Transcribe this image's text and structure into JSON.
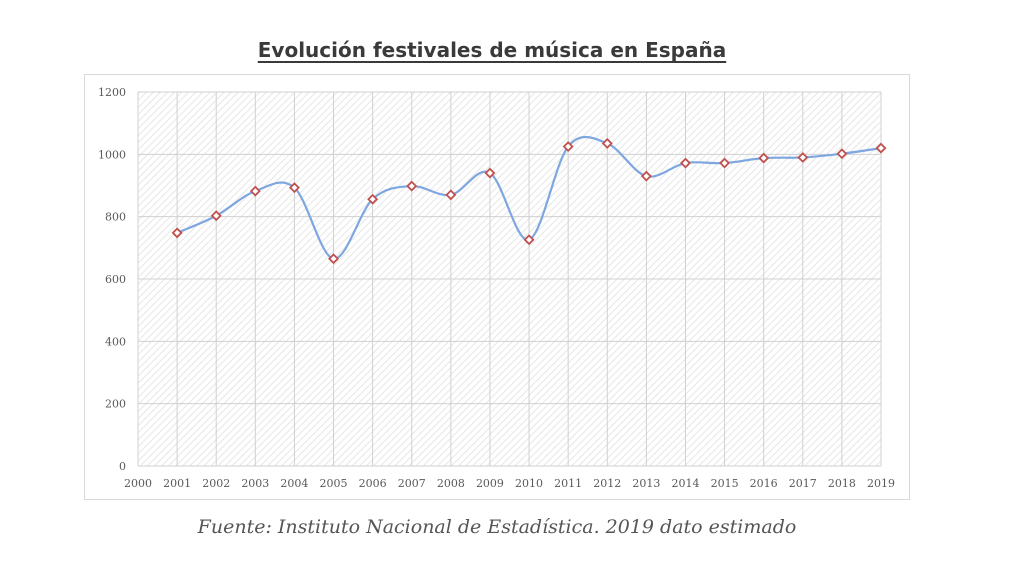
{
  "chart_data": {
    "type": "line",
    "title": "Evolución festivales de música en España",
    "xlabel": "",
    "ylabel": "",
    "x": [
      "2000",
      "2001",
      "2002",
      "2003",
      "2004",
      "2005",
      "2006",
      "2007",
      "2008",
      "2009",
      "2010",
      "2011",
      "2012",
      "2013",
      "2014",
      "2015",
      "2016",
      "2017",
      "2018",
      "2019"
    ],
    "series": [
      {
        "x": [
          "2001",
          "2002",
          "2003",
          "2004",
          "2005",
          "2006",
          "2007",
          "2008",
          "2009",
          "2010",
          "2011",
          "2012",
          "2013",
          "2014",
          "2015",
          "2016",
          "2017",
          "2018",
          "2019"
        ],
        "values": [
          748,
          803,
          882,
          893,
          665,
          856,
          898,
          870,
          940,
          726,
          1025,
          1035,
          930,
          972,
          972,
          988,
          990,
          1002,
          1020
        ]
      }
    ],
    "ylim": [
      0,
      1200
    ],
    "yticks": [
      0,
      200,
      400,
      600,
      800,
      1000,
      1200
    ],
    "grid": true,
    "line_color": "#7ea6e0",
    "marker_color": "#c0504d",
    "smooth": true
  },
  "caption": "Fuente: Instituto Nacional de Estadística. 2019 dato estimado"
}
